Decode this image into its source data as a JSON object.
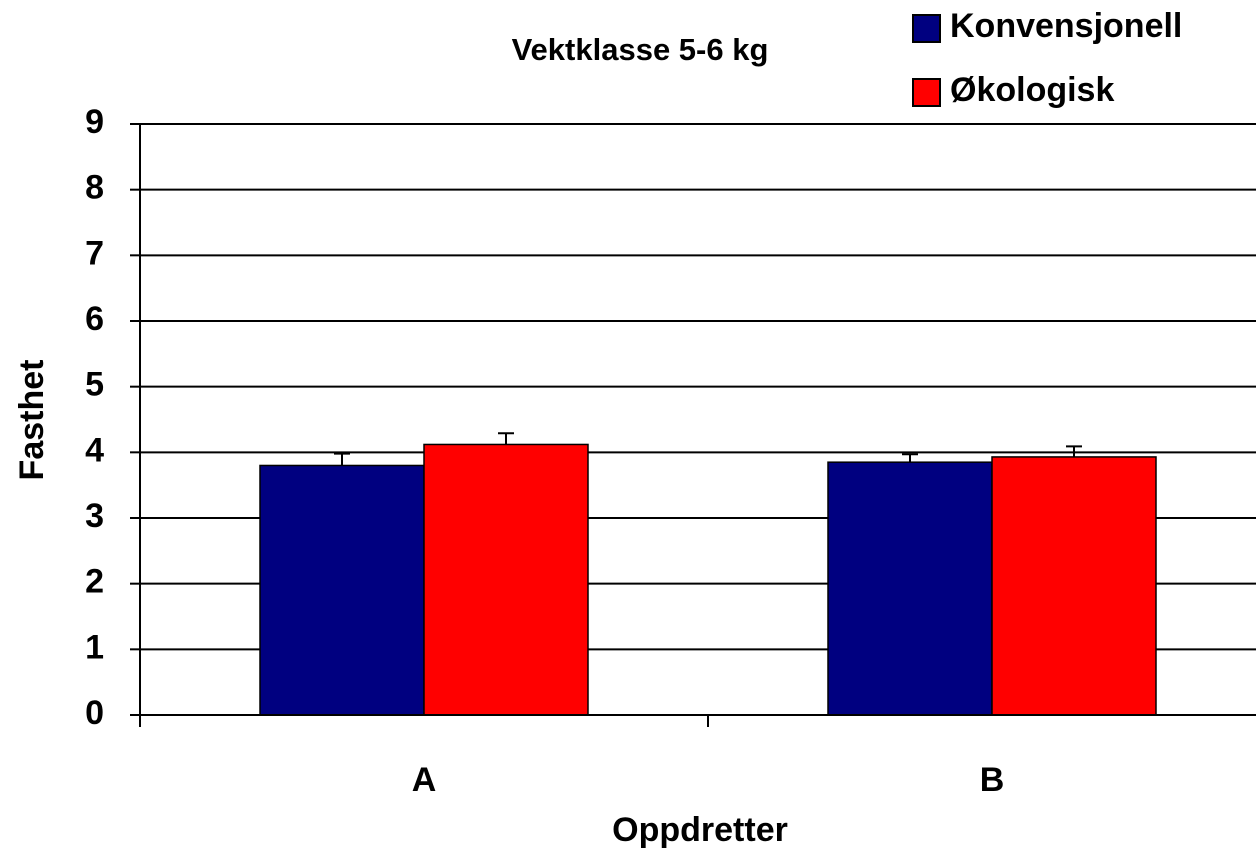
{
  "chart_data": {
    "type": "bar",
    "title": "Vektklasse 5-6 kg",
    "xlabel": "Oppdretter",
    "ylabel": "Fasthet",
    "categories": [
      "A",
      "B"
    ],
    "series": [
      {
        "name": "Konvensjonell",
        "color": "#000080",
        "values": [
          3.8,
          3.85
        ],
        "errors": [
          0.18,
          0.12
        ]
      },
      {
        "name": "Økologisk",
        "color": "#ff0000",
        "values": [
          4.12,
          3.93
        ],
        "errors": [
          0.17,
          0.16
        ]
      }
    ],
    "ylim": [
      0,
      9
    ],
    "yticks": [
      0,
      1,
      2,
      3,
      4,
      5,
      6,
      7,
      8,
      9
    ],
    "grid": true,
    "legend": "top-right"
  }
}
